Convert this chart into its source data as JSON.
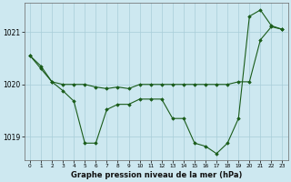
{
  "title": "Graphe pression niveau de la mer (hPa)",
  "background_color": "#cde8f0",
  "grid_color": "#a8cdd8",
  "line_color": "#1a5c1a",
  "marker_color": "#1a5c1a",
  "xlim": [
    -0.5,
    23.5
  ],
  "ylim": [
    1018.55,
    1021.55
  ],
  "yticks": [
    1019,
    1020,
    1021
  ],
  "xticks": [
    0,
    1,
    2,
    3,
    4,
    5,
    6,
    7,
    8,
    9,
    10,
    11,
    12,
    13,
    14,
    15,
    16,
    17,
    18,
    19,
    20,
    21,
    22,
    23
  ],
  "line1_y": [
    1020.55,
    1020.35,
    1020.05,
    1020.0,
    1020.0,
    1020.0,
    1019.95,
    1019.92,
    1019.95,
    1019.92,
    1020.0,
    1020.0,
    1020.0,
    1020.0,
    1020.0,
    1020.0,
    1020.0,
    1020.0,
    1020.0,
    1020.05,
    1020.05,
    1020.85,
    1021.1,
    1021.05
  ],
  "line2_y": [
    1020.55,
    1020.3,
    1020.05,
    1019.88,
    1019.68,
    1018.88,
    1018.88,
    1019.52,
    1019.62,
    1019.62,
    1019.72,
    1019.72,
    1019.72,
    1019.35,
    1019.35,
    1018.88,
    1018.82,
    1018.68,
    1018.88,
    1019.35,
    1021.3,
    1021.42,
    1021.12,
    1021.05
  ]
}
